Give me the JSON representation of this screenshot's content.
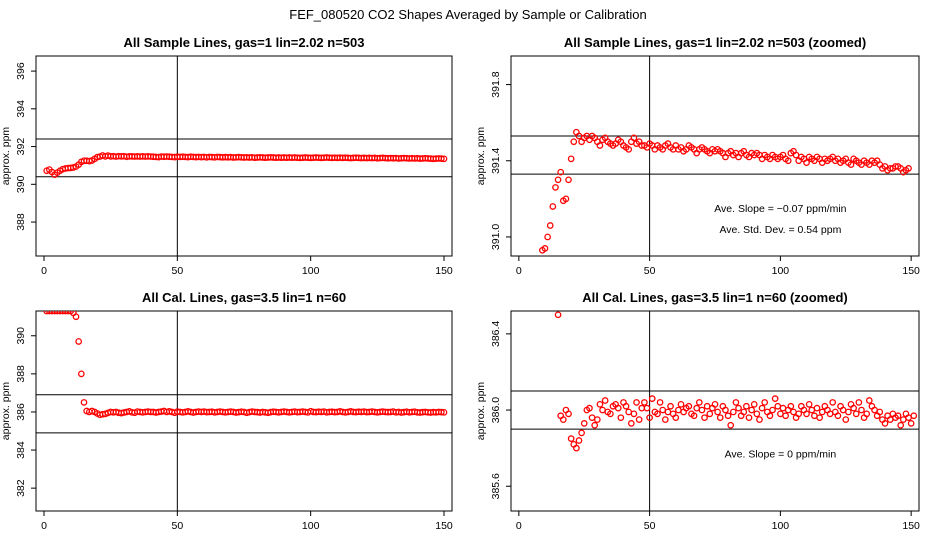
{
  "figure": {
    "title": "FEF_080520  CO2 Shapes Averaged by Sample or Calibration",
    "point_color": "#ff0000",
    "line_color": "#000000"
  },
  "chart_data": [
    {
      "id": "sample",
      "type": "scatter",
      "title": "All Sample Lines, gas=1 lin=2.02 n=503",
      "ylabel": "approx. ppm",
      "xlim": [
        -3,
        153
      ],
      "ylim": [
        386.2,
        396.8
      ],
      "xticks": [
        0,
        50,
        100,
        150
      ],
      "yticks": [
        388,
        390,
        392,
        394,
        396
      ],
      "hlines": [
        390.4,
        392.4
      ],
      "vline": 50,
      "annotations": [],
      "series": [
        {
          "name": "sample average",
          "x0": 1,
          "dx": 1,
          "y": [
            390.72,
            390.78,
            390.65,
            390.51,
            390.62,
            390.72,
            390.8,
            390.84,
            390.86,
            390.87,
            390.89,
            390.94,
            391.04,
            391.19,
            391.25,
            391.25,
            391.23,
            391.26,
            391.35,
            391.44,
            391.47,
            391.53,
            391.48,
            391.52,
            391.48,
            391.49,
            391.47,
            391.49,
            391.48,
            391.49,
            391.46,
            391.48,
            391.48,
            391.47,
            391.48,
            391.47,
            391.48,
            391.47,
            391.48,
            391.47,
            391.46,
            391.45,
            391.44,
            391.47,
            391.46,
            391.47,
            391.46,
            391.45,
            391.44,
            391.46,
            391.45,
            391.46,
            391.45,
            391.44,
            391.46,
            391.45,
            391.44,
            391.45,
            391.44,
            391.45,
            391.43,
            391.45,
            391.44,
            391.43,
            391.45,
            391.44,
            391.43,
            391.44,
            391.43,
            391.44,
            391.42,
            391.43,
            391.44,
            391.43,
            391.42,
            391.43,
            391.42,
            391.43,
            391.41,
            391.42,
            391.43,
            391.42,
            391.41,
            391.42,
            391.43,
            391.42,
            391.41,
            391.42,
            391.41,
            391.42,
            391.41,
            391.42,
            391.41,
            391.42,
            391.41,
            391.4,
            391.41,
            391.42,
            391.41,
            391.4,
            391.41,
            391.42,
            391.41,
            391.4,
            391.41,
            391.42,
            391.41,
            391.4,
            391.41,
            391.4,
            391.41,
            391.4,
            391.41,
            391.4,
            391.39,
            391.4,
            391.41,
            391.4,
            391.39,
            391.4,
            391.39,
            391.4,
            391.39,
            391.4,
            391.38,
            391.39,
            391.4,
            391.39,
            391.38,
            391.39,
            391.38,
            391.39,
            391.37,
            391.38,
            391.39,
            391.38,
            391.37,
            391.38,
            391.37,
            391.38,
            391.36,
            391.37,
            391.38,
            391.37,
            391.36,
            391.35,
            391.36,
            391.37,
            391.36,
            391.35
          ]
        }
      ]
    },
    {
      "id": "sample-zoomed",
      "type": "scatter",
      "title": "All Sample Lines, gas=1 lin=2.02 n=503 (zoomed)",
      "ylabel": "approx. ppm",
      "xlim": [
        -3,
        153
      ],
      "ylim": [
        390.9,
        391.95
      ],
      "xticks": [
        0,
        50,
        100,
        150
      ],
      "yticks": [
        391.0,
        391.4,
        391.8
      ],
      "tick_decimals": 1,
      "hlines": [
        391.33,
        391.53
      ],
      "vline": 50,
      "annotations": [
        {
          "text": "Ave. Slope =  −0.07  ppm/min",
          "x": 100,
          "y": 391.13
        },
        {
          "text": "Ave. Std. Dev. =  0.54  ppm",
          "x": 100,
          "y": 391.02
        }
      ],
      "series": [
        {
          "name": "sample average (zoomed)",
          "x0": 9,
          "dx": 1,
          "y": [
            390.93,
            390.94,
            391.0,
            391.06,
            391.16,
            391.26,
            391.3,
            391.34,
            391.19,
            391.2,
            391.3,
            391.41,
            391.5,
            391.55,
            391.53,
            391.5,
            391.52,
            391.53,
            391.51,
            391.53,
            391.52,
            391.5,
            391.48,
            391.51,
            391.52,
            391.5,
            391.49,
            391.48,
            391.49,
            391.51,
            391.5,
            391.48,
            391.47,
            391.46,
            391.5,
            391.52,
            391.49,
            391.5,
            391.48,
            391.48,
            391.47,
            391.49,
            391.48,
            391.46,
            391.48,
            391.47,
            391.46,
            391.48,
            391.49,
            391.47,
            391.46,
            391.48,
            391.46,
            391.47,
            391.45,
            391.46,
            391.48,
            391.47,
            391.46,
            391.44,
            391.46,
            391.47,
            391.46,
            391.45,
            391.44,
            391.46,
            391.45,
            391.46,
            391.45,
            391.44,
            391.42,
            391.44,
            391.45,
            391.43,
            391.44,
            391.42,
            391.44,
            391.45,
            391.43,
            391.42,
            391.44,
            391.43,
            391.44,
            391.43,
            391.41,
            391.43,
            391.42,
            391.41,
            391.43,
            391.42,
            391.41,
            391.42,
            391.43,
            391.41,
            391.4,
            391.44,
            391.45,
            391.43,
            391.4,
            391.42,
            391.41,
            391.39,
            391.42,
            391.41,
            391.4,
            391.42,
            391.41,
            391.39,
            391.41,
            391.4,
            391.41,
            391.42,
            391.4,
            391.41,
            391.39,
            391.4,
            391.41,
            391.39,
            391.38,
            391.41,
            391.4,
            391.39,
            391.38,
            391.4,
            391.39,
            391.38,
            391.4,
            391.39,
            391.4,
            391.38,
            391.36,
            391.37,
            391.35,
            391.36,
            391.36,
            391.37,
            391.37,
            391.36,
            391.34,
            391.35,
            391.36
          ]
        }
      ]
    },
    {
      "id": "cal",
      "type": "scatter",
      "title": "All Cal. Lines, gas=3.5 lin=1 n=60",
      "ylabel": "approx. ppm",
      "xlim": [
        -3,
        153
      ],
      "ylim": [
        380.8,
        391.3
      ],
      "xticks": [
        0,
        50,
        100,
        150
      ],
      "yticks": [
        382,
        384,
        386,
        388,
        390
      ],
      "hlines": [
        384.9,
        386.9
      ],
      "vline": 50,
      "annotations": [],
      "series": [
        {
          "name": "calibration average",
          "x0": 1,
          "dx": 1,
          "y": [
            391.3,
            391.3,
            391.3,
            391.3,
            391.3,
            391.3,
            391.3,
            391.3,
            391.3,
            391.3,
            391.2,
            391.0,
            389.7,
            388.0,
            386.5,
            386.05,
            386.0,
            386.05,
            386.0,
            385.92,
            385.85,
            385.88,
            385.9,
            385.95,
            386.0,
            385.98,
            386.0,
            385.96,
            385.94,
            385.97,
            386.0,
            386.03,
            385.98,
            385.96,
            386.02,
            386.0,
            385.98,
            386.0,
            386.02,
            386.0,
            386.0,
            385.97,
            386.0,
            386.02,
            386.05,
            386.0,
            386.03,
            386.0,
            385.96,
            386.02,
            386.0,
            385.98,
            386.0,
            386.03,
            386.0,
            385.97,
            386.0,
            386.02,
            386.0,
            386.02,
            385.99,
            386.0,
            386.01,
            385.98,
            386.0,
            386.02,
            386.0,
            385.98,
            386.0,
            386.02,
            386.0,
            385.97,
            385.99,
            386.01,
            386.0,
            385.96,
            385.99,
            386.02,
            386.0,
            385.99,
            385.97,
            386.0,
            385.98,
            385.96,
            385.99,
            386.01,
            386.0,
            385.98,
            386.0,
            386.02,
            386.0,
            385.98,
            386.0,
            386.02,
            385.99,
            386.0,
            386.02,
            386.0,
            385.98,
            386.04,
            386.0,
            385.99,
            386.01,
            386.0,
            386.02,
            385.98,
            386.0,
            386.01,
            385.99,
            386.0,
            386.03,
            386.0,
            385.98,
            386.0,
            386.03,
            386.0,
            385.99,
            386.01,
            386.0,
            386.02,
            385.99,
            386.0,
            386.02,
            386.0,
            385.98,
            386.0,
            386.02,
            386.0,
            385.99,
            386.0,
            386.02,
            385.98,
            386.0,
            385.97,
            385.99,
            386.01,
            385.98,
            386.0,
            386.01,
            385.98,
            385.97,
            385.99,
            386.0,
            385.98,
            385.97,
            385.99,
            385.98,
            386.0,
            385.99,
            385.98
          ]
        }
      ]
    },
    {
      "id": "cal-zoomed",
      "type": "scatter",
      "title": "All Cal. Lines, gas=3.5 lin=1 n=60 (zoomed)",
      "ylabel": "approx. ppm",
      "xlim": [
        -3,
        153
      ],
      "ylim": [
        385.47,
        386.52
      ],
      "xticks": [
        0,
        50,
        100,
        150
      ],
      "yticks": [
        385.6,
        386.0,
        386.4
      ],
      "tick_decimals": 1,
      "hlines": [
        385.9,
        386.1
      ],
      "vline": 50,
      "annotations": [
        {
          "text": "Ave. Slope =  0  ppm/min",
          "x": 100,
          "y": 385.75
        }
      ],
      "series": [
        {
          "name": "calibration average (zoomed)",
          "x0": 15,
          "dx": 1,
          "y": [
            386.5,
            385.97,
            385.95,
            386.0,
            385.98,
            385.85,
            385.82,
            385.8,
            385.84,
            385.88,
            385.93,
            386.0,
            386.01,
            385.96,
            385.92,
            385.95,
            386.03,
            386.0,
            386.05,
            385.99,
            385.98,
            386.02,
            386.03,
            386.01,
            385.96,
            386.04,
            386.02,
            385.99,
            385.93,
            385.98,
            386.04,
            385.95,
            386.01,
            386.04,
            386.01,
            385.96,
            386.06,
            385.99,
            385.98,
            386.04,
            386.0,
            385.95,
            385.99,
            386.02,
            385.98,
            385.96,
            386.0,
            386.03,
            385.99,
            386.01,
            386.02,
            385.98,
            385.97,
            386.01,
            386.04,
            386.0,
            385.96,
            386.02,
            385.98,
            386.01,
            386.03,
            385.99,
            385.96,
            386.02,
            386.0,
            385.97,
            385.92,
            385.99,
            386.04,
            386.01,
            385.97,
            385.99,
            386.02,
            385.96,
            386.0,
            386.03,
            385.98,
            385.95,
            386.01,
            386.04,
            385.99,
            385.97,
            386.0,
            386.06,
            386.02,
            385.98,
            386.01,
            385.97,
            386.0,
            386.02,
            385.99,
            385.96,
            385.98,
            386.02,
            386.0,
            385.98,
            386.03,
            386.0,
            385.97,
            386.01,
            385.96,
            385.99,
            386.02,
            386.0,
            385.98,
            386.04,
            385.99,
            385.97,
            386.02,
            386.0,
            385.95,
            385.99,
            386.03,
            386.01,
            385.98,
            386.04,
            386.0,
            385.96,
            385.98,
            386.05,
            386.02,
            386.0,
            385.97,
            385.99,
            385.95,
            385.93,
            385.97,
            385.95,
            385.98,
            385.96,
            385.97,
            385.92,
            385.95,
            385.98,
            385.96,
            385.93,
            385.97
          ]
        }
      ]
    }
  ]
}
